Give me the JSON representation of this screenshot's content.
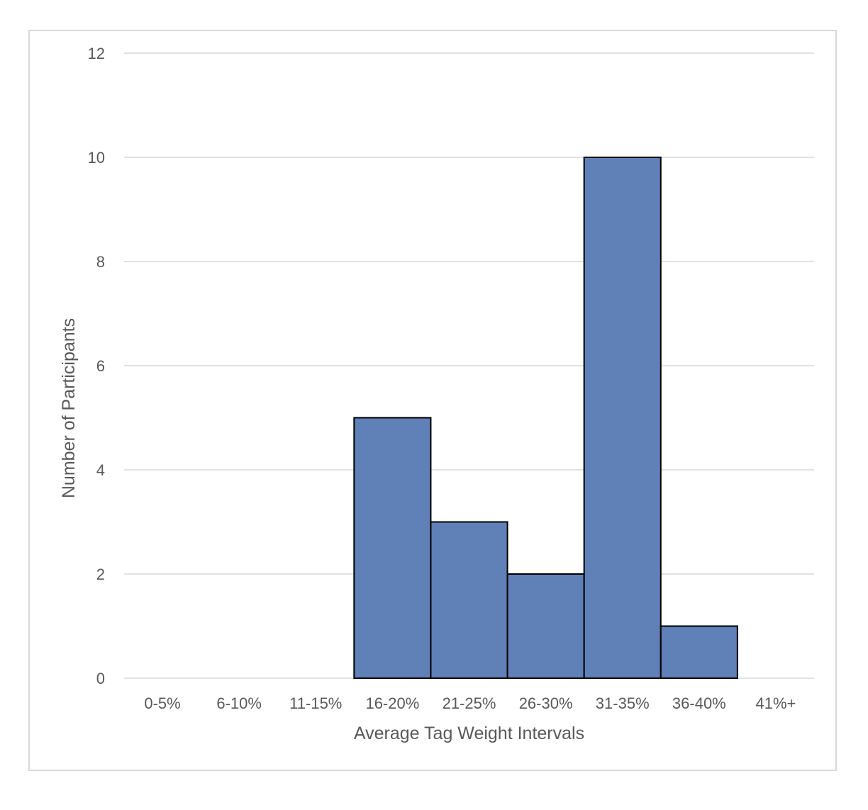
{
  "chart_data": {
    "type": "bar",
    "title": "",
    "xlabel": "Average Tag Weight Intervals",
    "ylabel": "Number of Participants",
    "categories": [
      "0-5%",
      "6-10%",
      "11-15%",
      "16-20%",
      "21-25%",
      "26-30%",
      "31-35%",
      "36-40%",
      "41%+"
    ],
    "values": [
      0,
      0,
      0,
      5,
      3,
      2,
      10,
      1,
      0
    ],
    "ylim": [
      0,
      12
    ],
    "yticks": [
      "0",
      "2",
      "4",
      "6",
      "8",
      "10",
      "12"
    ],
    "grid": true,
    "legend": "none",
    "bar_color": "#6080b8",
    "bar_edge_color": "#000000",
    "grid_color": "#d9d9d9"
  }
}
